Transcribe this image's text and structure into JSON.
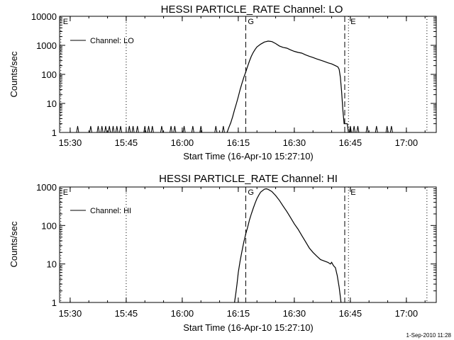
{
  "footer": {
    "timestamp": "1-Sep-2010 11:28"
  },
  "chart_data": [
    {
      "type": "line",
      "title": "HESSI PARTICLE_RATE Channel: LO",
      "xlabel": "Start Time (16-Apr-10 15:27:10)",
      "ylabel": "Counts/sec",
      "y_scale": "log",
      "xlim": [
        "15:27:10",
        "17:08:00"
      ],
      "ylim": [
        1,
        10000
      ],
      "x_ticks": [
        "15:30",
        "15:45",
        "16:00",
        "16:15",
        "16:30",
        "16:45",
        "17:00"
      ],
      "y_ticks": [
        "1",
        "10",
        "100",
        "1000",
        "10000"
      ],
      "legend": {
        "position": "top-left",
        "entries": [
          "Channel: LO"
        ]
      },
      "vlines": [
        {
          "time": "15:27:30",
          "label": "E",
          "style": "dotted"
        },
        {
          "time": "15:45:00",
          "label": "",
          "style": "dotted"
        },
        {
          "time": "16:17:00",
          "label": "G",
          "style": "dashed"
        },
        {
          "time": "16:43:30",
          "label": "",
          "style": "dashed"
        },
        {
          "time": "16:44:30",
          "label": "E",
          "style": "dotted"
        },
        {
          "time": "17:05:30",
          "label": "",
          "style": "dotted"
        }
      ],
      "noise_spikes": [
        "15:32:00",
        "15:35:30",
        "15:37:30",
        "15:38:30",
        "15:39:30",
        "15:40:30",
        "15:41:30",
        "15:42:30",
        "15:43:30",
        "15:45:50",
        "15:46:50",
        "15:48:00",
        "15:50:00",
        "15:51:00",
        "15:52:00",
        "15:54:30",
        "15:57:00",
        "15:58:00",
        "16:00:30",
        "16:02:50",
        "16:05:00",
        "16:09:00",
        "16:11:00",
        "16:45:00",
        "16:46:00",
        "16:47:00",
        "16:49:30",
        "16:52:00",
        "16:54:50",
        "16:56:00"
      ],
      "series": [
        {
          "name": "Channel: LO",
          "points": [
            [
              "16:12:00",
              1
            ],
            [
              "16:12:30",
              1.5
            ],
            [
              "16:13:00",
              2.2
            ],
            [
              "16:13:30",
              3.5
            ],
            [
              "16:14:00",
              6
            ],
            [
              "16:14:30",
              10
            ],
            [
              "16:15:00",
              17
            ],
            [
              "16:15:30",
              30
            ],
            [
              "16:16:00",
              50
            ],
            [
              "16:16:30",
              80
            ],
            [
              "16:17:00",
              120
            ],
            [
              "16:17:30",
              190
            ],
            [
              "16:18:00",
              290
            ],
            [
              "16:18:30",
              420
            ],
            [
              "16:19:00",
              570
            ],
            [
              "16:19:30",
              720
            ],
            [
              "16:20:00",
              880
            ],
            [
              "16:21:00",
              1100
            ],
            [
              "16:22:00",
              1300
            ],
            [
              "16:23:00",
              1400
            ],
            [
              "16:24:00",
              1350
            ],
            [
              "16:25:00",
              1150
            ],
            [
              "16:26:00",
              950
            ],
            [
              "16:27:00",
              850
            ],
            [
              "16:28:00",
              800
            ],
            [
              "16:29:00",
              700
            ],
            [
              "16:30:00",
              620
            ],
            [
              "16:31:00",
              570
            ],
            [
              "16:32:00",
              540
            ],
            [
              "16:33:00",
              470
            ],
            [
              "16:34:00",
              420
            ],
            [
              "16:35:00",
              380
            ],
            [
              "16:36:00",
              340
            ],
            [
              "16:37:00",
              310
            ],
            [
              "16:38:00",
              280
            ],
            [
              "16:39:00",
              250
            ],
            [
              "16:40:00",
              230
            ],
            [
              "16:41:00",
              200
            ],
            [
              "16:41:40",
              180
            ],
            [
              "16:42:00",
              150
            ],
            [
              "16:42:20",
              80
            ],
            [
              "16:42:40",
              25
            ],
            [
              "16:43:00",
              6
            ],
            [
              "16:43:20",
              2
            ],
            [
              "16:43:40",
              2
            ],
            [
              "16:44:10",
              2
            ],
            [
              "16:44:30",
              1
            ]
          ]
        }
      ]
    },
    {
      "type": "line",
      "title": "HESSI PARTICLE_RATE Channel: HI",
      "xlabel": "Start Time (16-Apr-10 15:27:10)",
      "ylabel": "Counts/sec",
      "y_scale": "log",
      "xlim": [
        "15:27:10",
        "17:08:00"
      ],
      "ylim": [
        1,
        1000
      ],
      "x_ticks": [
        "15:30",
        "15:45",
        "16:00",
        "16:15",
        "16:30",
        "16:45",
        "17:00"
      ],
      "y_ticks": [
        "1",
        "10",
        "100",
        "1000"
      ],
      "legend": {
        "position": "top-left",
        "entries": [
          "Channel: HI"
        ]
      },
      "vlines": [
        {
          "time": "15:27:30",
          "label": "E",
          "style": "dotted"
        },
        {
          "time": "15:45:00",
          "label": "",
          "style": "dotted"
        },
        {
          "time": "16:17:00",
          "label": "G",
          "style": "dashed"
        },
        {
          "time": "16:43:30",
          "label": "",
          "style": "dashed"
        },
        {
          "time": "16:44:30",
          "label": "E",
          "style": "dotted"
        },
        {
          "time": "17:05:30",
          "label": "",
          "style": "dotted"
        }
      ],
      "noise_spikes": [],
      "series": [
        {
          "name": "Channel: HI",
          "points": [
            [
              "16:14:00",
              1
            ],
            [
              "16:14:20",
              1.7
            ],
            [
              "16:14:40",
              3
            ],
            [
              "16:15:00",
              6
            ],
            [
              "16:15:30",
              12
            ],
            [
              "16:16:00",
              22
            ],
            [
              "16:16:30",
              38
            ],
            [
              "16:17:00",
              60
            ],
            [
              "16:17:30",
              90
            ],
            [
              "16:18:00",
              140
            ],
            [
              "16:18:30",
              200
            ],
            [
              "16:19:00",
              280
            ],
            [
              "16:19:30",
              380
            ],
            [
              "16:20:00",
              500
            ],
            [
              "16:20:30",
              620
            ],
            [
              "16:21:00",
              740
            ],
            [
              "16:22:00",
              880
            ],
            [
              "16:22:30",
              900
            ],
            [
              "16:23:00",
              870
            ],
            [
              "16:24:00",
              760
            ],
            [
              "16:25:00",
              600
            ],
            [
              "16:26:00",
              450
            ],
            [
              "16:27:00",
              320
            ],
            [
              "16:28:00",
              230
            ],
            [
              "16:29:00",
              160
            ],
            [
              "16:30:00",
              110
            ],
            [
              "16:31:00",
              80
            ],
            [
              "16:32:00",
              55
            ],
            [
              "16:33:00",
              38
            ],
            [
              "16:34:00",
              26
            ],
            [
              "16:35:00",
              20
            ],
            [
              "16:36:00",
              16
            ],
            [
              "16:37:00",
              13
            ],
            [
              "16:38:00",
              12
            ],
            [
              "16:39:00",
              11
            ],
            [
              "16:39:40",
              10
            ],
            [
              "16:40:00",
              11
            ],
            [
              "16:40:30",
              9
            ],
            [
              "16:41:00",
              8
            ],
            [
              "16:41:30",
              5
            ],
            [
              "16:42:00",
              2.5
            ],
            [
              "16:42:20",
              1.4
            ],
            [
              "16:42:30",
              1
            ]
          ]
        }
      ]
    }
  ]
}
